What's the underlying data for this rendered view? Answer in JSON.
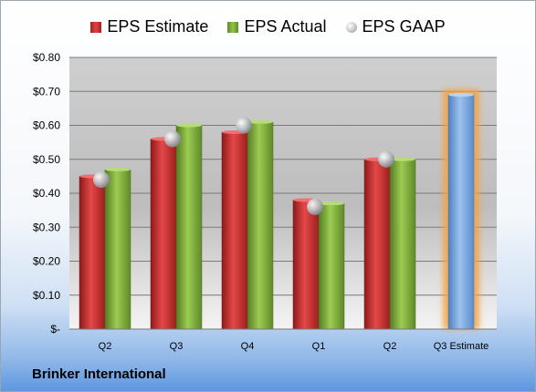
{
  "company": "Brinker International",
  "legend": {
    "estimate": "EPS Estimate",
    "actual": "EPS Actual",
    "gaap": "EPS GAAP"
  },
  "colors": {
    "estimate": "#c62828",
    "actual": "#7aab3a",
    "gaap": "#b9bec4",
    "forecast": "#6f9fd8",
    "forecast_glow": "#f5a340"
  },
  "chart_data": {
    "type": "bar",
    "categories": [
      "Q2",
      "Q3",
      "Q4",
      "Q1",
      "Q2",
      "Q3 Estimate"
    ],
    "series": [
      {
        "name": "EPS Estimate",
        "values": [
          0.45,
          0.56,
          0.58,
          0.38,
          0.5,
          null
        ]
      },
      {
        "name": "EPS Actual",
        "values": [
          0.47,
          0.6,
          0.61,
          0.37,
          0.5,
          null
        ]
      },
      {
        "name": "EPS GAAP",
        "values": [
          0.44,
          0.56,
          0.6,
          0.36,
          0.5,
          null
        ]
      }
    ],
    "forecast": {
      "category": "Q3 Estimate",
      "value": 0.69
    },
    "y_ticks": [
      "$-",
      "$0.10",
      "$0.20",
      "$0.30",
      "$0.40",
      "$0.50",
      "$0.60",
      "$0.70",
      "$0.80"
    ],
    "ylim": [
      0,
      0.8
    ],
    "grid": true,
    "legend_position": "top"
  }
}
